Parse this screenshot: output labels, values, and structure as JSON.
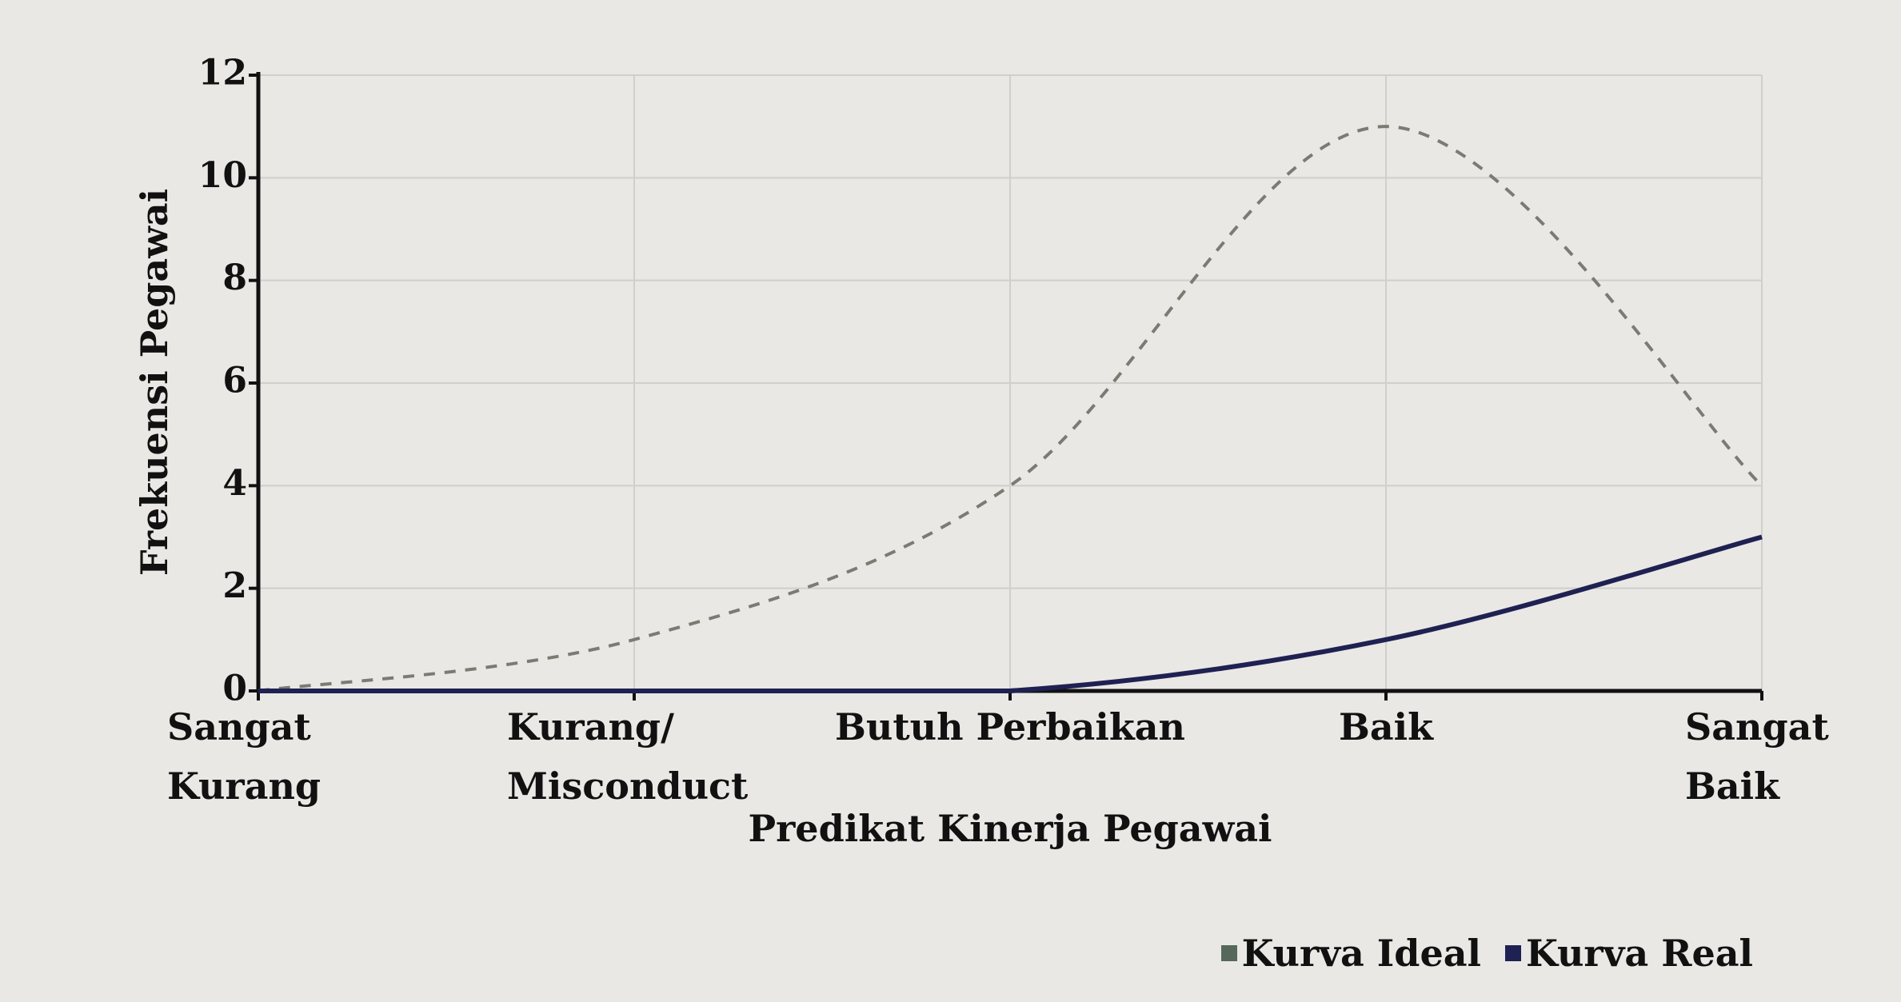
{
  "chart_data": {
    "type": "line",
    "x_label": "Predikat Kinerja Pegawai",
    "y_label": "Frekuensi Pegawai",
    "categories": [
      "Sangat Kurang",
      "Kurang/ Misconduct",
      "Butuh Perbaikan",
      "Baik",
      "Sangat Baik"
    ],
    "series": [
      {
        "name": "Kurva Ideal",
        "color": "#56685a",
        "dashed": true,
        "values": [
          0,
          1,
          4,
          11,
          4
        ]
      },
      {
        "name": "Kurva Real",
        "color": "#1f2152",
        "dashed": false,
        "values": [
          0,
          0,
          0,
          1,
          3
        ]
      }
    ],
    "ylim": [
      0,
      12
    ],
    "yticks": [
      0,
      2,
      4,
      6,
      8,
      10,
      12
    ],
    "grid": true,
    "legend": "bottom-right"
  }
}
